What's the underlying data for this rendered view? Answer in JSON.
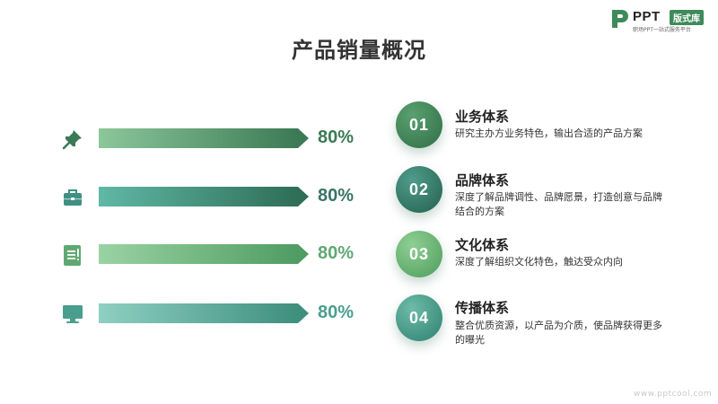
{
  "logo": {
    "brand": "PPT",
    "tag": "版式库",
    "tagline": "职场PPT一站式服务平台"
  },
  "title": "产品销量概况",
  "colors": {
    "dark_green": "#3b7a55",
    "teal": "#3f8f82",
    "light_green": "#5fa873",
    "text_dark": "#333333"
  },
  "bars": [
    {
      "icon": "pushpin-icon",
      "label": "80%",
      "value": 0.8,
      "color": "#3b7a55"
    },
    {
      "icon": "briefcase-icon",
      "label": "80%",
      "value": 0.8,
      "color": "#3f8f82"
    },
    {
      "icon": "document-icon",
      "label": "80%",
      "value": 0.8,
      "color": "#5fa873"
    },
    {
      "icon": "monitor-icon",
      "label": "80%",
      "value": 0.8,
      "color": "#4a9e8e"
    }
  ],
  "items": [
    {
      "number": "01",
      "title": "业务体系",
      "desc": "研究主办方业务特色，输出合适的产品方案"
    },
    {
      "number": "02",
      "title": "品牌体系",
      "desc": "深度了解品牌调性、品牌愿景，打造创意与品牌结合的方案"
    },
    {
      "number": "03",
      "title": "文化体系",
      "desc": "深度了解组织文化特色，触达受众内向"
    },
    {
      "number": "04",
      "title": "传播体系",
      "desc": "整合优质资源，以产品为介质，使品牌获得更多的曝光"
    }
  ],
  "watermark": "www.pptcool.com"
}
